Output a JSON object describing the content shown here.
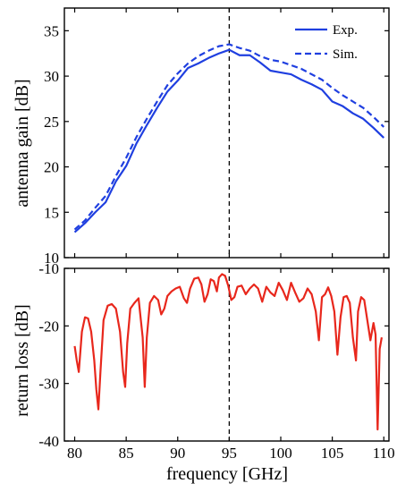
{
  "chart_data": [
    {
      "type": "line",
      "ylabel": "antenna gain [dB]",
      "xlim": [
        79,
        110.5
      ],
      "ylim": [
        10,
        37.5
      ],
      "yticks": [
        10,
        15,
        20,
        25,
        30,
        35
      ],
      "vline_x": 95,
      "legend_position": "top-right",
      "series": [
        {
          "name": "Exp.",
          "style": "solid",
          "color": "#1f3fe0",
          "x": [
            80,
            81,
            82,
            83,
            84,
            85,
            86,
            87,
            88,
            89,
            90,
            91,
            92,
            93,
            94,
            95,
            96,
            97,
            98,
            99,
            100,
            101,
            102,
            103,
            104,
            105,
            106,
            107,
            108,
            109,
            110
          ],
          "y": [
            12.8,
            13.8,
            15.0,
            16.1,
            18.4,
            20.1,
            22.6,
            24.6,
            26.5,
            28.3,
            29.5,
            30.9,
            31.4,
            32.0,
            32.5,
            32.9,
            32.3,
            32.3,
            31.5,
            30.6,
            30.4,
            30.2,
            29.6,
            29.1,
            28.5,
            27.2,
            26.7,
            25.9,
            25.3,
            24.3,
            23.2
          ]
        },
        {
          "name": "Sim.",
          "style": "dashed",
          "color": "#1f3fe0",
          "x": [
            80,
            81,
            82,
            83,
            84,
            85,
            86,
            87,
            88,
            89,
            90,
            91,
            92,
            93,
            94,
            95,
            96,
            97,
            98,
            99,
            100,
            101,
            102,
            103,
            104,
            105,
            106,
            107,
            108,
            109,
            110
          ],
          "y": [
            13.1,
            14.1,
            15.5,
            16.8,
            19.0,
            21.0,
            23.3,
            25.3,
            27.2,
            29.0,
            30.3,
            31.4,
            32.2,
            32.8,
            33.3,
            33.5,
            33.1,
            32.8,
            32.2,
            31.8,
            31.6,
            31.2,
            30.8,
            30.2,
            29.6,
            28.7,
            27.9,
            27.2,
            26.5,
            25.5,
            24.4
          ]
        }
      ]
    },
    {
      "type": "line",
      "ylabel": "return loss [dB]",
      "xlabel": "frequency [GHz]",
      "xlim": [
        79,
        110.5
      ],
      "ylim": [
        -40,
        -10
      ],
      "xticks": [
        80,
        85,
        90,
        95,
        100,
        105,
        110
      ],
      "yticks": [
        -40,
        -30,
        -20,
        -10
      ],
      "vline_x": 95,
      "series": [
        {
          "color": "#e8271c",
          "x": [
            80,
            80.2,
            80.4,
            80.7,
            81.0,
            81.3,
            81.6,
            81.9,
            82.1,
            82.3,
            82.5,
            82.8,
            83.2,
            83.6,
            84.0,
            84.4,
            84.7,
            84.9,
            85.1,
            85.4,
            85.8,
            86.2,
            86.6,
            86.8,
            87.0,
            87.3,
            87.7,
            88.1,
            88.4,
            88.7,
            89.0,
            89.4,
            89.8,
            90.2,
            90.6,
            90.9,
            91.2,
            91.6,
            92.0,
            92.3,
            92.6,
            92.9,
            93.2,
            93.5,
            93.8,
            94.0,
            94.3,
            94.6,
            94.9,
            95.2,
            95.5,
            95.8,
            96.2,
            96.6,
            97.0,
            97.4,
            97.8,
            98.2,
            98.6,
            99.0,
            99.4,
            99.8,
            100.2,
            100.6,
            101.0,
            101.4,
            101.8,
            102.2,
            102.6,
            103.0,
            103.4,
            103.7,
            104.0,
            104.3,
            104.6,
            104.9,
            105.2,
            105.5,
            105.8,
            106.1,
            106.4,
            106.7,
            107.0,
            107.3,
            107.5,
            107.8,
            108.1,
            108.4,
            108.7,
            109.0,
            109.2,
            109.4,
            109.6,
            109.8
          ],
          "y": [
            -23.5,
            -26.0,
            -28.0,
            -21.0,
            -18.5,
            -18.7,
            -21.0,
            -26.0,
            -31.0,
            -34.5,
            -28.0,
            -19.0,
            -16.5,
            -16.2,
            -17.0,
            -21.0,
            -28.0,
            -30.6,
            -23.0,
            -17.0,
            -16.0,
            -15.2,
            -22.0,
            -30.6,
            -22.0,
            -16.0,
            -14.8,
            -15.5,
            -18.0,
            -17.0,
            -14.8,
            -14.0,
            -13.5,
            -13.2,
            -15.2,
            -16.0,
            -13.5,
            -11.8,
            -11.6,
            -12.8,
            -15.8,
            -14.5,
            -11.9,
            -12.2,
            -14.0,
            -11.6,
            -11.0,
            -11.3,
            -13.0,
            -15.5,
            -15.0,
            -13.2,
            -13.0,
            -14.5,
            -13.5,
            -12.8,
            -13.5,
            -15.8,
            -13.2,
            -14.2,
            -14.8,
            -12.5,
            -13.8,
            -15.5,
            -12.5,
            -14.2,
            -15.8,
            -15.2,
            -13.5,
            -14.5,
            -17.5,
            -22.5,
            -15.0,
            -14.5,
            -13.3,
            -14.8,
            -17.5,
            -25.0,
            -18.5,
            -15.0,
            -14.8,
            -16.0,
            -22.0,
            -26.0,
            -17.5,
            -15.0,
            -15.5,
            -19.0,
            -22.5,
            -19.5,
            -21.5,
            -38.0,
            -24.0,
            -22.0
          ]
        }
      ]
    }
  ]
}
